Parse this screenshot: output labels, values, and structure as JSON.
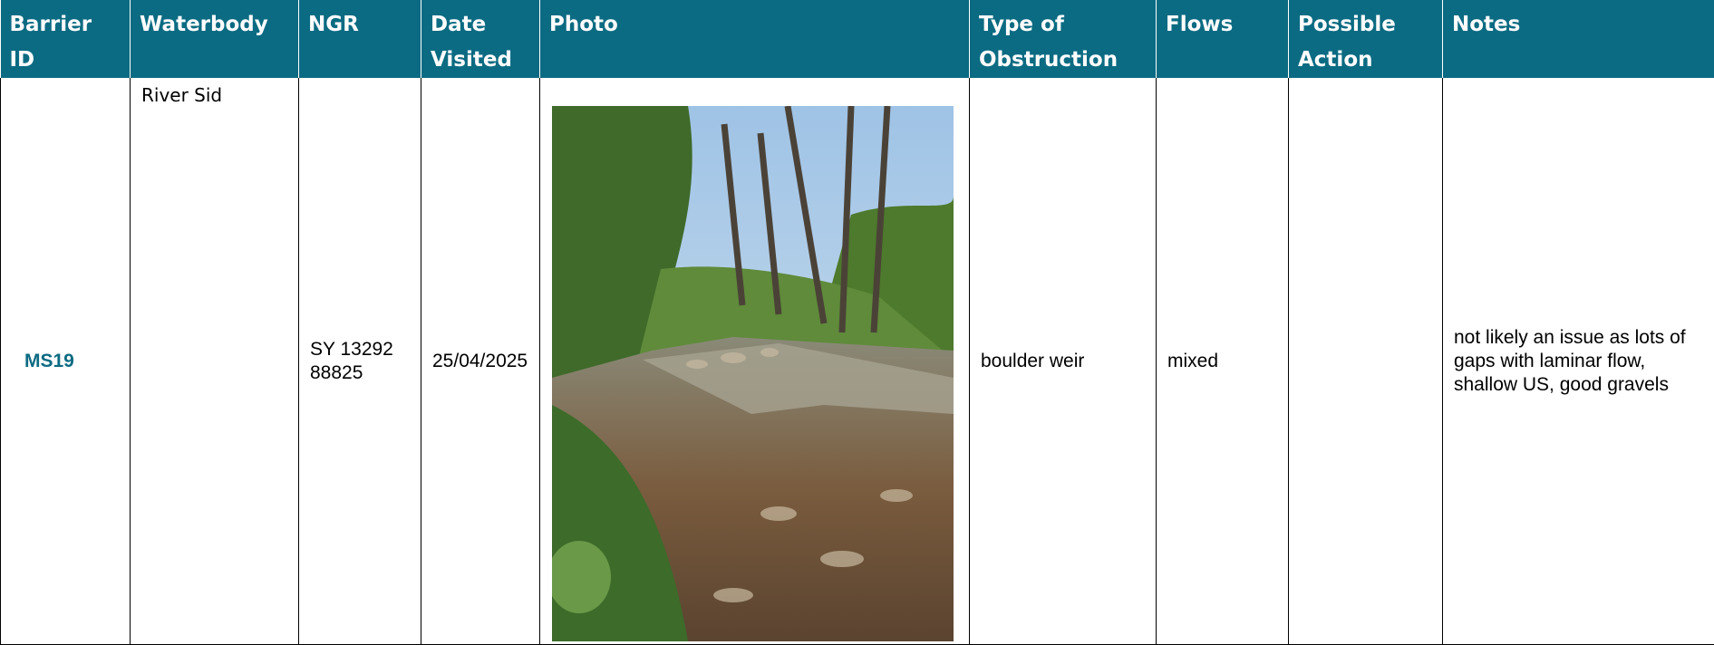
{
  "table": {
    "columns": [
      "Barrier ID",
      "Waterbody",
      "NGR",
      "Date Visited",
      "Photo",
      "Type of Obstruction",
      "Flows",
      "Possible Action",
      "Notes"
    ],
    "rows": [
      {
        "barrier_id": "MS19",
        "waterbody": "River Sid",
        "ngr": "SY 13292 88825",
        "date_visited": "25/04/2025",
        "type_of_obstruction": "boulder weir",
        "flows": "mixed",
        "notes": "not likely an issue as lots of gaps with laminar flow, shallow US, good gravels"
      }
    ]
  }
}
